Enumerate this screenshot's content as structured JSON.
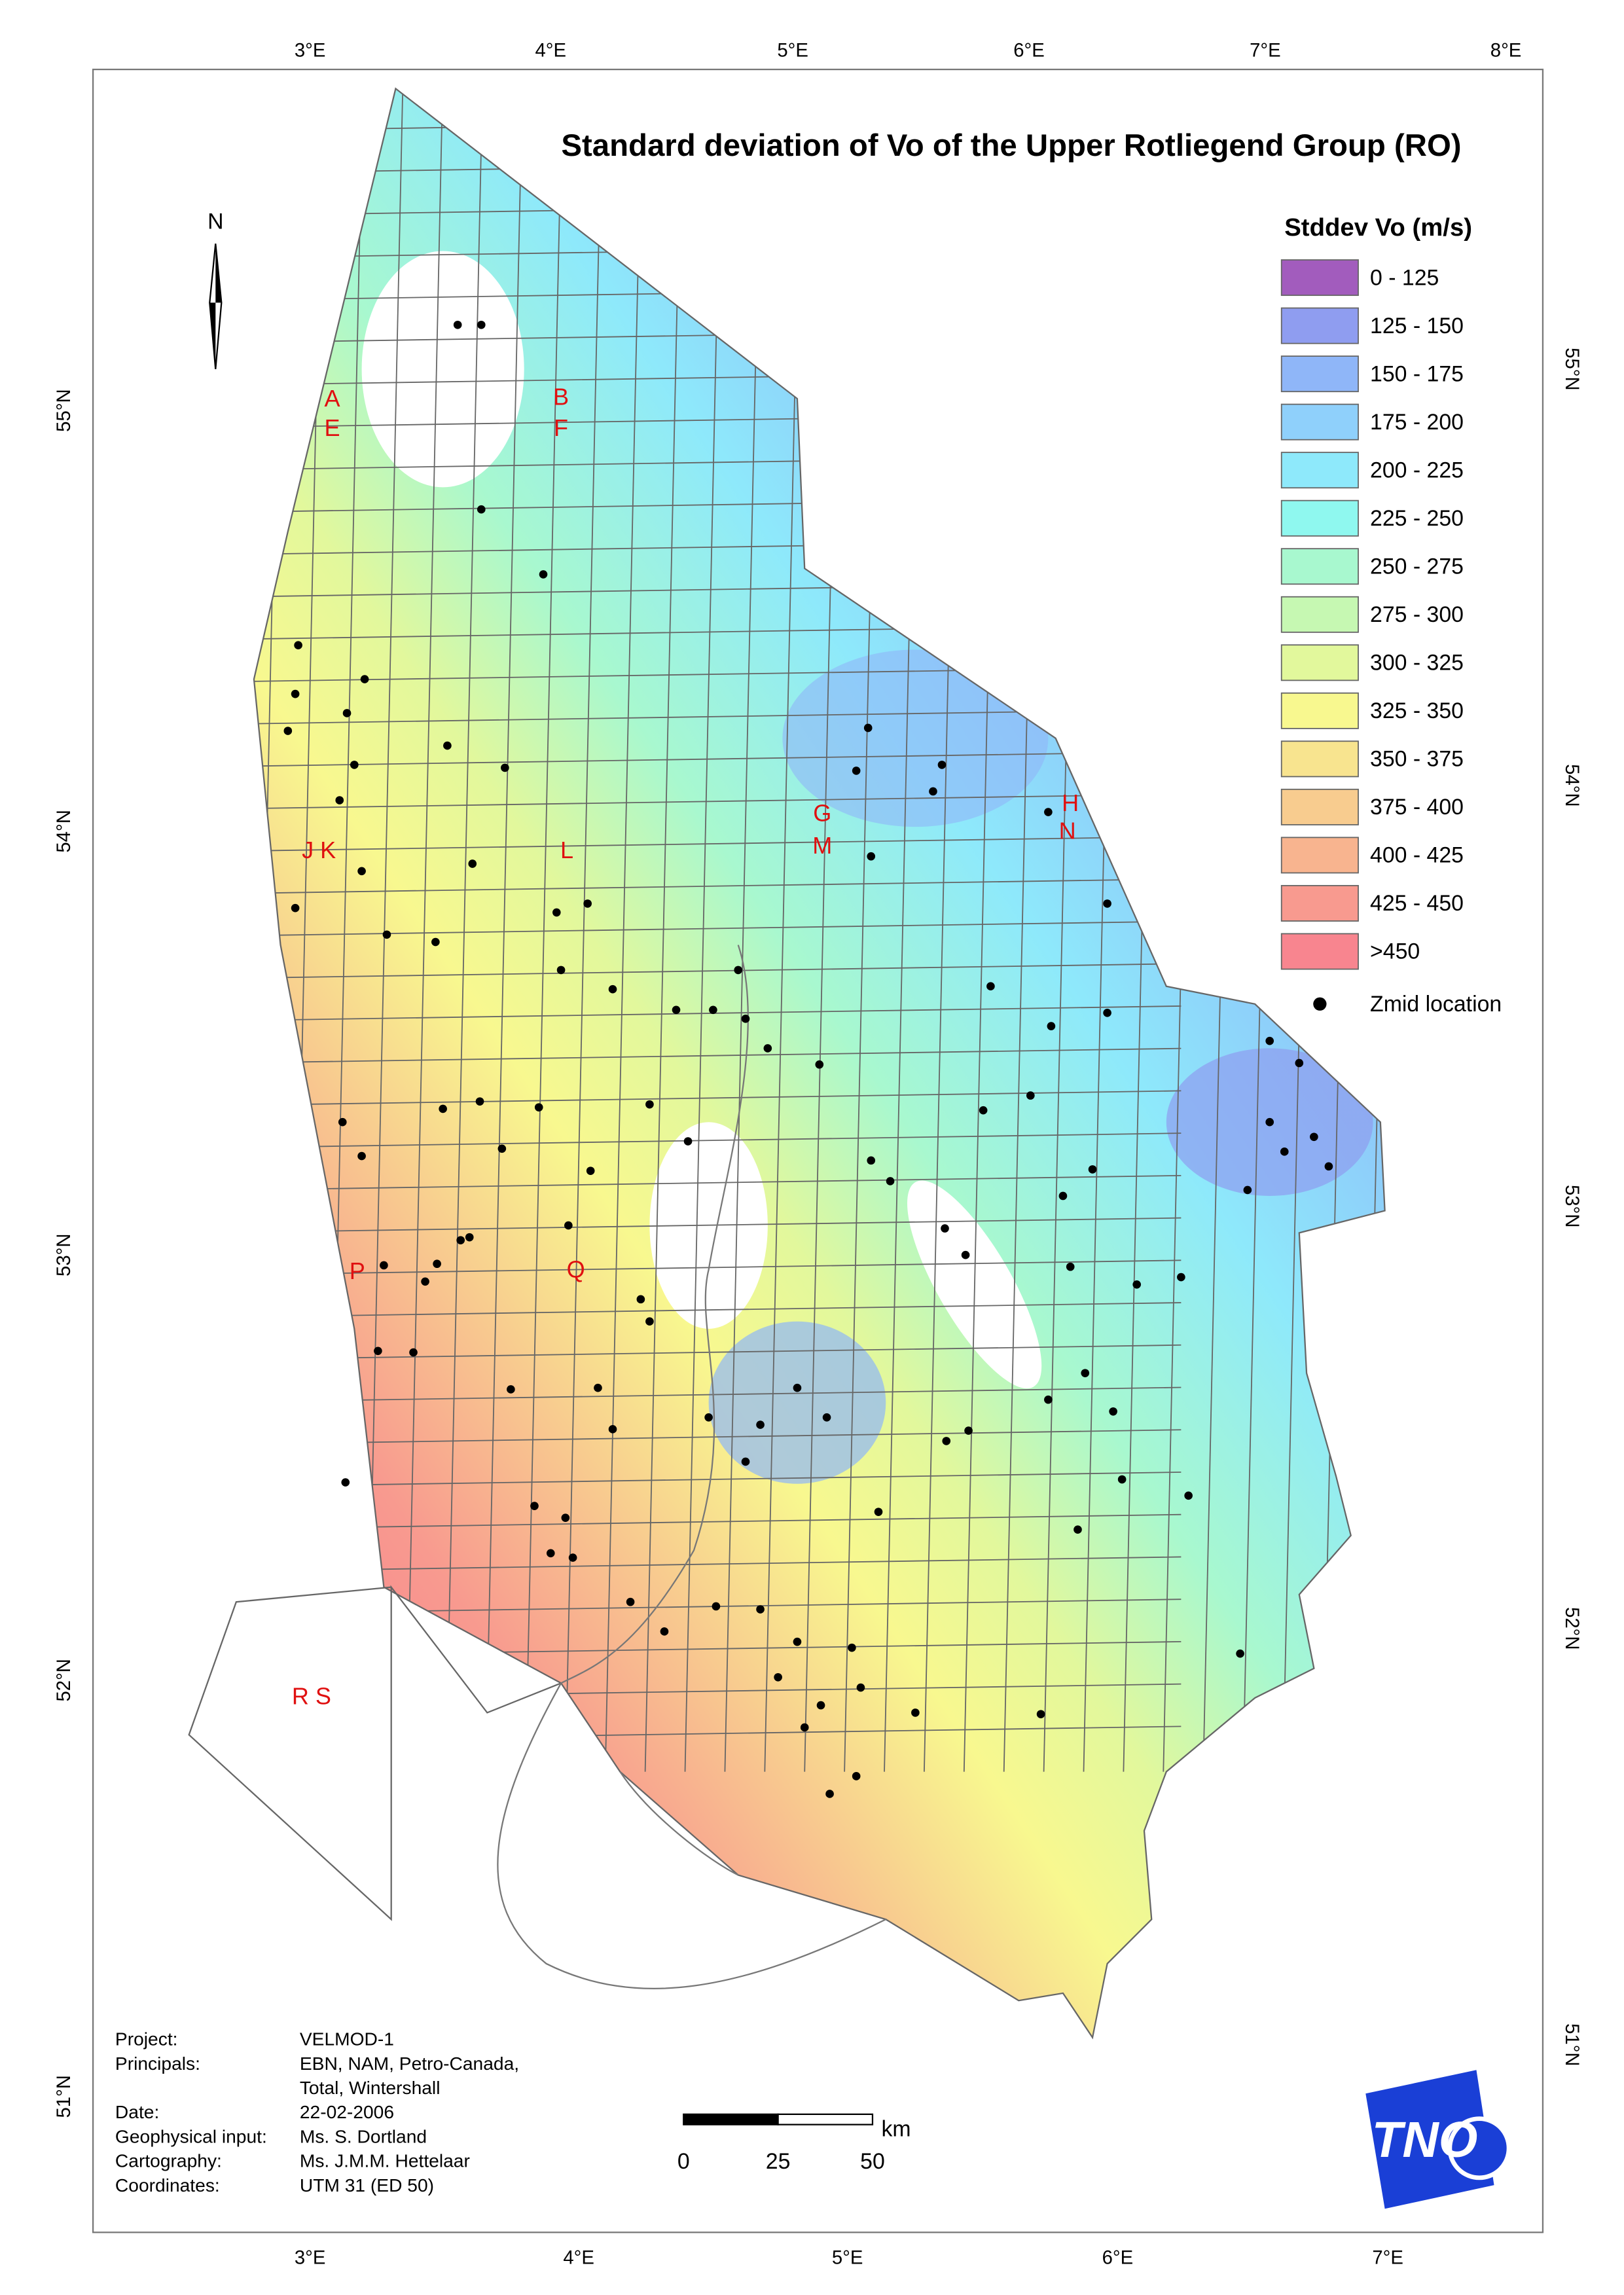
{
  "title": "Standard deviation of Vo of the Upper Rotliegend Group (RO)",
  "north_label": "N",
  "legend": {
    "title": "Stddev Vo (m/s)",
    "items": [
      {
        "label": "0 - 125",
        "color": "#a25cbd"
      },
      {
        "label": "125 - 150",
        "color": "#8f9df0"
      },
      {
        "label": "150 - 175",
        "color": "#8fb6f8"
      },
      {
        "label": "175 - 200",
        "color": "#8fd0fb"
      },
      {
        "label": "200 - 225",
        "color": "#8ee9fb"
      },
      {
        "label": "225 - 250",
        "color": "#8ff8ef"
      },
      {
        "label": "250 - 275",
        "color": "#a8f8cf"
      },
      {
        "label": "275 - 300",
        "color": "#c6f8b2"
      },
      {
        "label": "300 - 325",
        "color": "#e2f89c"
      },
      {
        "label": "325 - 350",
        "color": "#f8f88f"
      },
      {
        "label": "350 - 375",
        "color": "#f8e48f"
      },
      {
        "label": "375 - 400",
        "color": "#f8cc8f"
      },
      {
        "label": "400 - 425",
        "color": "#f8b48f"
      },
      {
        "label": "425 - 450",
        "color": "#f89a8f"
      },
      {
        "label": ">450",
        "color": "#f8858f"
      }
    ],
    "points_label": "Zmid location"
  },
  "graticule": {
    "top": [
      "3°E",
      "4°E",
      "5°E",
      "6°E",
      "7°E",
      "8°E"
    ],
    "bottom": [
      "3°E",
      "4°E",
      "5°E",
      "6°E",
      "7°E"
    ],
    "left": [
      "55°N",
      "54°N",
      "53°N",
      "52°N",
      "51°N"
    ],
    "right": [
      "55°N",
      "54°N",
      "53°N",
      "52°N",
      "51°N"
    ]
  },
  "block_labels": [
    "A",
    "E",
    "B",
    "F",
    "G",
    "M",
    "H",
    "N",
    "J K",
    "L",
    "P",
    "Q",
    "R S"
  ],
  "info": [
    {
      "label": "Project:",
      "lines": [
        "VELMOD-1"
      ]
    },
    {
      "label": "Principals:",
      "lines": [
        "EBN, NAM, Petro-Canada,",
        "Total, Wintershall"
      ]
    },
    {
      "label": "Date:",
      "lines": [
        "22-02-2006"
      ]
    },
    {
      "label": "Geophysical input:",
      "lines": [
        "Ms. S. Dortland"
      ]
    },
    {
      "label": "Cartography:",
      "lines": [
        "Ms. J.M.M. Hettelaar"
      ]
    },
    {
      "label": "Coordinates:",
      "lines": [
        "UTM 31 (ED 50)"
      ]
    }
  ],
  "scale_bar": {
    "unit": "km",
    "labels": [
      "0",
      "25",
      "50"
    ]
  },
  "logo": "TNO"
}
